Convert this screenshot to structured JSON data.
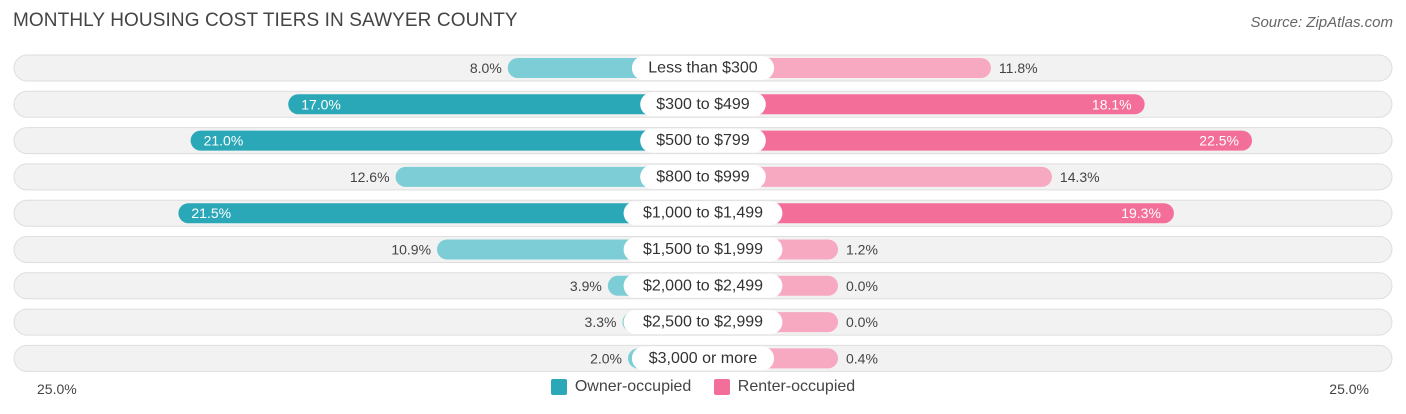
{
  "title": "MONTHLY HOUSING COST TIERS IN SAWYER COUNTY",
  "source": "Source: ZipAtlas.com",
  "colors": {
    "owner_strong": "#2aa8b8",
    "owner_light": "#7ccdd5",
    "renter_strong": "#f36f99",
    "renter_light": "#f7a9c2"
  },
  "chart_data": {
    "type": "bar",
    "orientation": "horizontal-diverging",
    "categories": [
      "Less than $300",
      "$300 to $499",
      "$500 to $799",
      "$800 to $999",
      "$1,000 to $1,499",
      "$1,500 to $1,999",
      "$2,000 to $2,499",
      "$2,500 to $2,999",
      "$3,000 or more"
    ],
    "series": [
      {
        "name": "Owner-occupied",
        "values": [
          8.0,
          17.0,
          21.0,
          12.6,
          21.5,
          10.9,
          3.9,
          3.3,
          2.0
        ],
        "labels": [
          "8.0%",
          "17.0%",
          "21.0%",
          "12.6%",
          "21.5%",
          "10.9%",
          "3.9%",
          "3.3%",
          "2.0%"
        ]
      },
      {
        "name": "Renter-occupied",
        "values": [
          11.8,
          18.1,
          22.5,
          14.3,
          19.3,
          1.2,
          0.0,
          0.0,
          0.4
        ],
        "labels": [
          "11.8%",
          "18.1%",
          "22.5%",
          "14.3%",
          "19.3%",
          "1.2%",
          "0.0%",
          "0.0%",
          "0.4%"
        ]
      }
    ],
    "xlim": [
      -25,
      25
    ],
    "axis_labels": {
      "left": "25.0%",
      "right": "25.0%"
    },
    "legend_position": "bottom-center"
  }
}
